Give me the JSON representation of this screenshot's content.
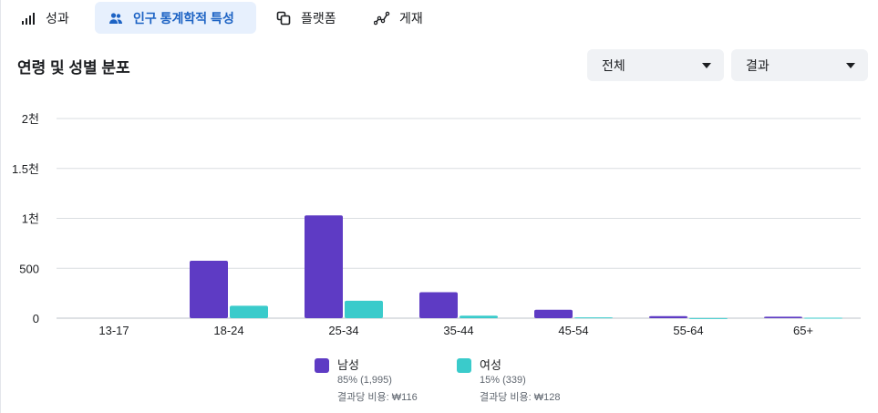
{
  "tabs": [
    {
      "label": "성과",
      "icon": "bar-chart-icon",
      "active": false
    },
    {
      "label": "인구 통계학적 특성",
      "icon": "people-icon",
      "active": true
    },
    {
      "label": "플랫폼",
      "icon": "platform-icon",
      "active": false
    },
    {
      "label": "게재",
      "icon": "delivery-line-icon",
      "active": false
    }
  ],
  "section": {
    "title": "연령 및 성별 분포"
  },
  "filters": {
    "scope": "전체",
    "metric": "결과"
  },
  "legend": [
    {
      "name": "남성",
      "share": "85% (1,995)",
      "cost": "결과당 비용: ₩116",
      "color": "#5e3bc4"
    },
    {
      "name": "여성",
      "share": "15% (339)",
      "cost": "결과당 비용: ₩128",
      "color": "#3acbcb"
    }
  ],
  "chart_data": {
    "type": "bar",
    "categories": [
      "13-17",
      "18-24",
      "25-34",
      "35-44",
      "45-54",
      "55-64",
      "65+"
    ],
    "series": [
      {
        "name": "남성",
        "color": "#5e3bc4",
        "values": [
          0,
          575,
          1030,
          260,
          85,
          20,
          15
        ]
      },
      {
        "name": "여성",
        "color": "#3acbcb",
        "values": [
          0,
          125,
          175,
          25,
          8,
          1,
          5
        ]
      }
    ],
    "yticks": [
      {
        "value": 0,
        "label": "0"
      },
      {
        "value": 500,
        "label": "500"
      },
      {
        "value": 1000,
        "label": "1천"
      },
      {
        "value": 1500,
        "label": "1.5천"
      },
      {
        "value": 2000,
        "label": "2천"
      }
    ],
    "ylim": [
      0,
      2000
    ],
    "grid": true
  }
}
